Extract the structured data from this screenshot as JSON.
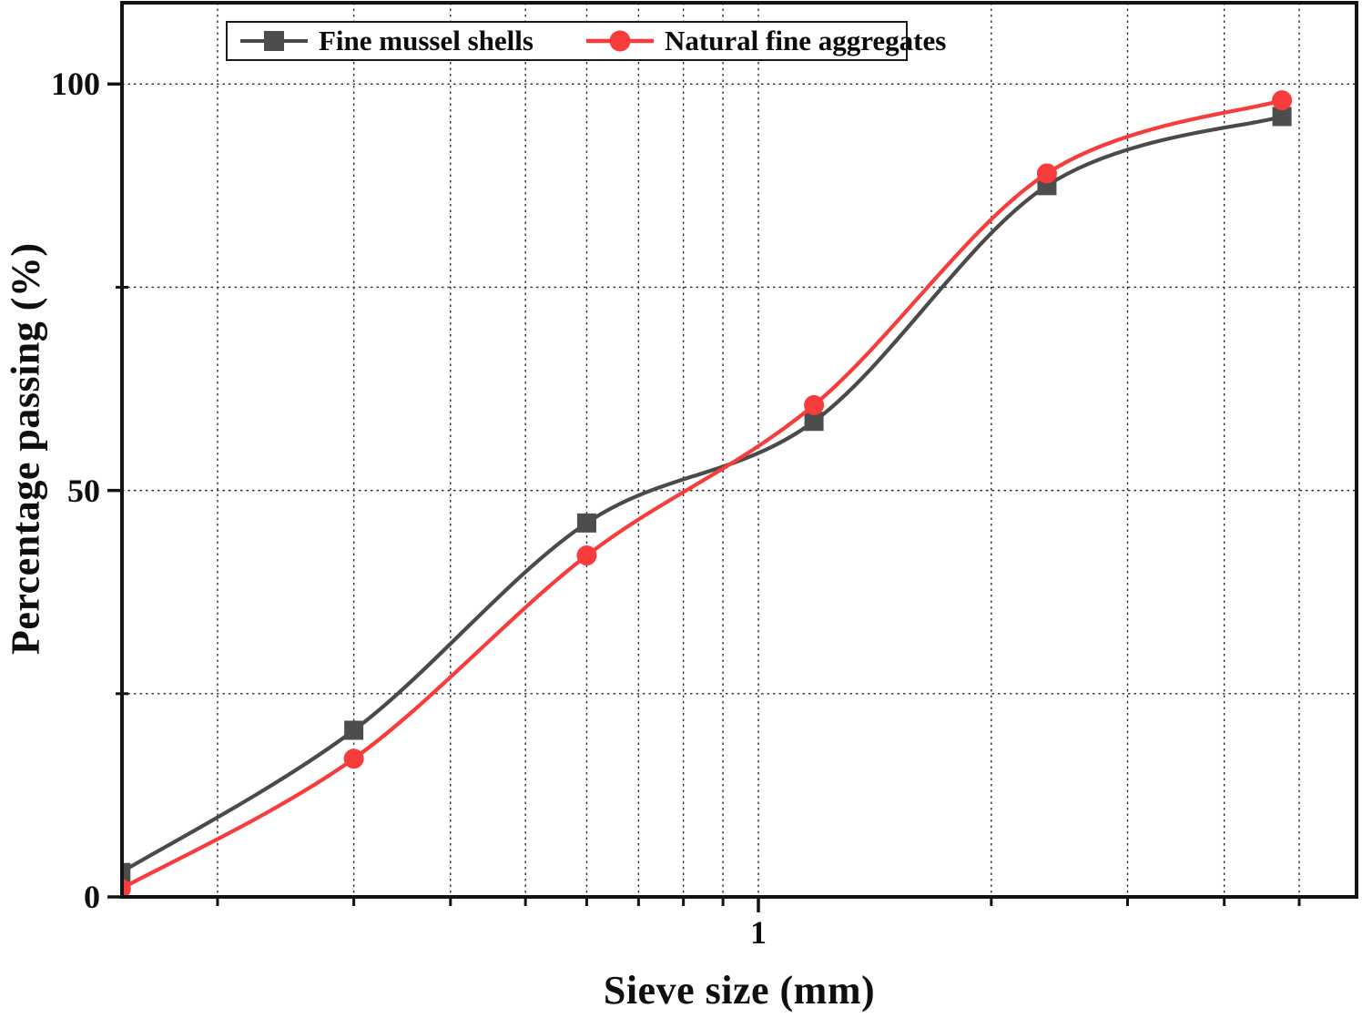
{
  "figure_title": "",
  "axes": {
    "x_title": "Sieve size (mm)",
    "y_title": "Percentage passing (%)"
  },
  "legend": {
    "items": [
      {
        "label": "Fine mussel shells",
        "marker": "square",
        "color": "#4d4d4d",
        "line_color": "#4a4a4a"
      },
      {
        "label": "Natural fine aggregates",
        "marker": "circle",
        "color": "#f83c3c",
        "line_color": "#f83c3c"
      }
    ]
  },
  "chart_data": {
    "type": "line",
    "x_scale": "log",
    "title": "",
    "xlabel": "Sieve size (mm)",
    "ylabel": "Percentage passing (%)",
    "x": [
      0.15,
      0.3,
      0.6,
      1.18,
      2.36,
      4.75
    ],
    "series": [
      {
        "name": "Fine mussel shells",
        "marker": "square",
        "color": "#4d4d4d",
        "line_color": "#4a4a4a",
        "values": [
          3,
          20.5,
          46,
          58.5,
          87.5,
          96
        ]
      },
      {
        "name": "Natural fine aggregates",
        "marker": "circle",
        "color": "#f83c3c",
        "line_color": "#f83c3c",
        "values": [
          1,
          17,
          42,
          60.5,
          89,
          98
        ]
      }
    ],
    "xlim": [
      0.1505,
      5.93
    ],
    "ylim": [
      0,
      110
    ],
    "x_ticks": [
      {
        "value": 0.2,
        "label": ""
      },
      {
        "value": 0.3,
        "label": ""
      },
      {
        "value": 0.4,
        "label": ""
      },
      {
        "value": 0.5,
        "label": ""
      },
      {
        "value": 0.6,
        "label": ""
      },
      {
        "value": 0.7,
        "label": ""
      },
      {
        "value": 0.8,
        "label": ""
      },
      {
        "value": 0.9,
        "label": ""
      },
      {
        "value": 1,
        "label": "1",
        "major": true
      },
      {
        "value": 2,
        "label": ""
      },
      {
        "value": 3,
        "label": ""
      },
      {
        "value": 4,
        "label": ""
      },
      {
        "value": 5,
        "label": ""
      }
    ],
    "y_ticks": [
      {
        "value": 0,
        "label": "0",
        "major": true
      },
      {
        "value": 25,
        "label": ""
      },
      {
        "value": 50,
        "label": "50",
        "major": true
      },
      {
        "value": 75,
        "label": ""
      },
      {
        "value": 100,
        "label": "100",
        "major": true
      }
    ],
    "grid": "dotted",
    "grid_color": "#2b2b2b",
    "axis_color": "#141414",
    "legend_position": "top-inside"
  }
}
